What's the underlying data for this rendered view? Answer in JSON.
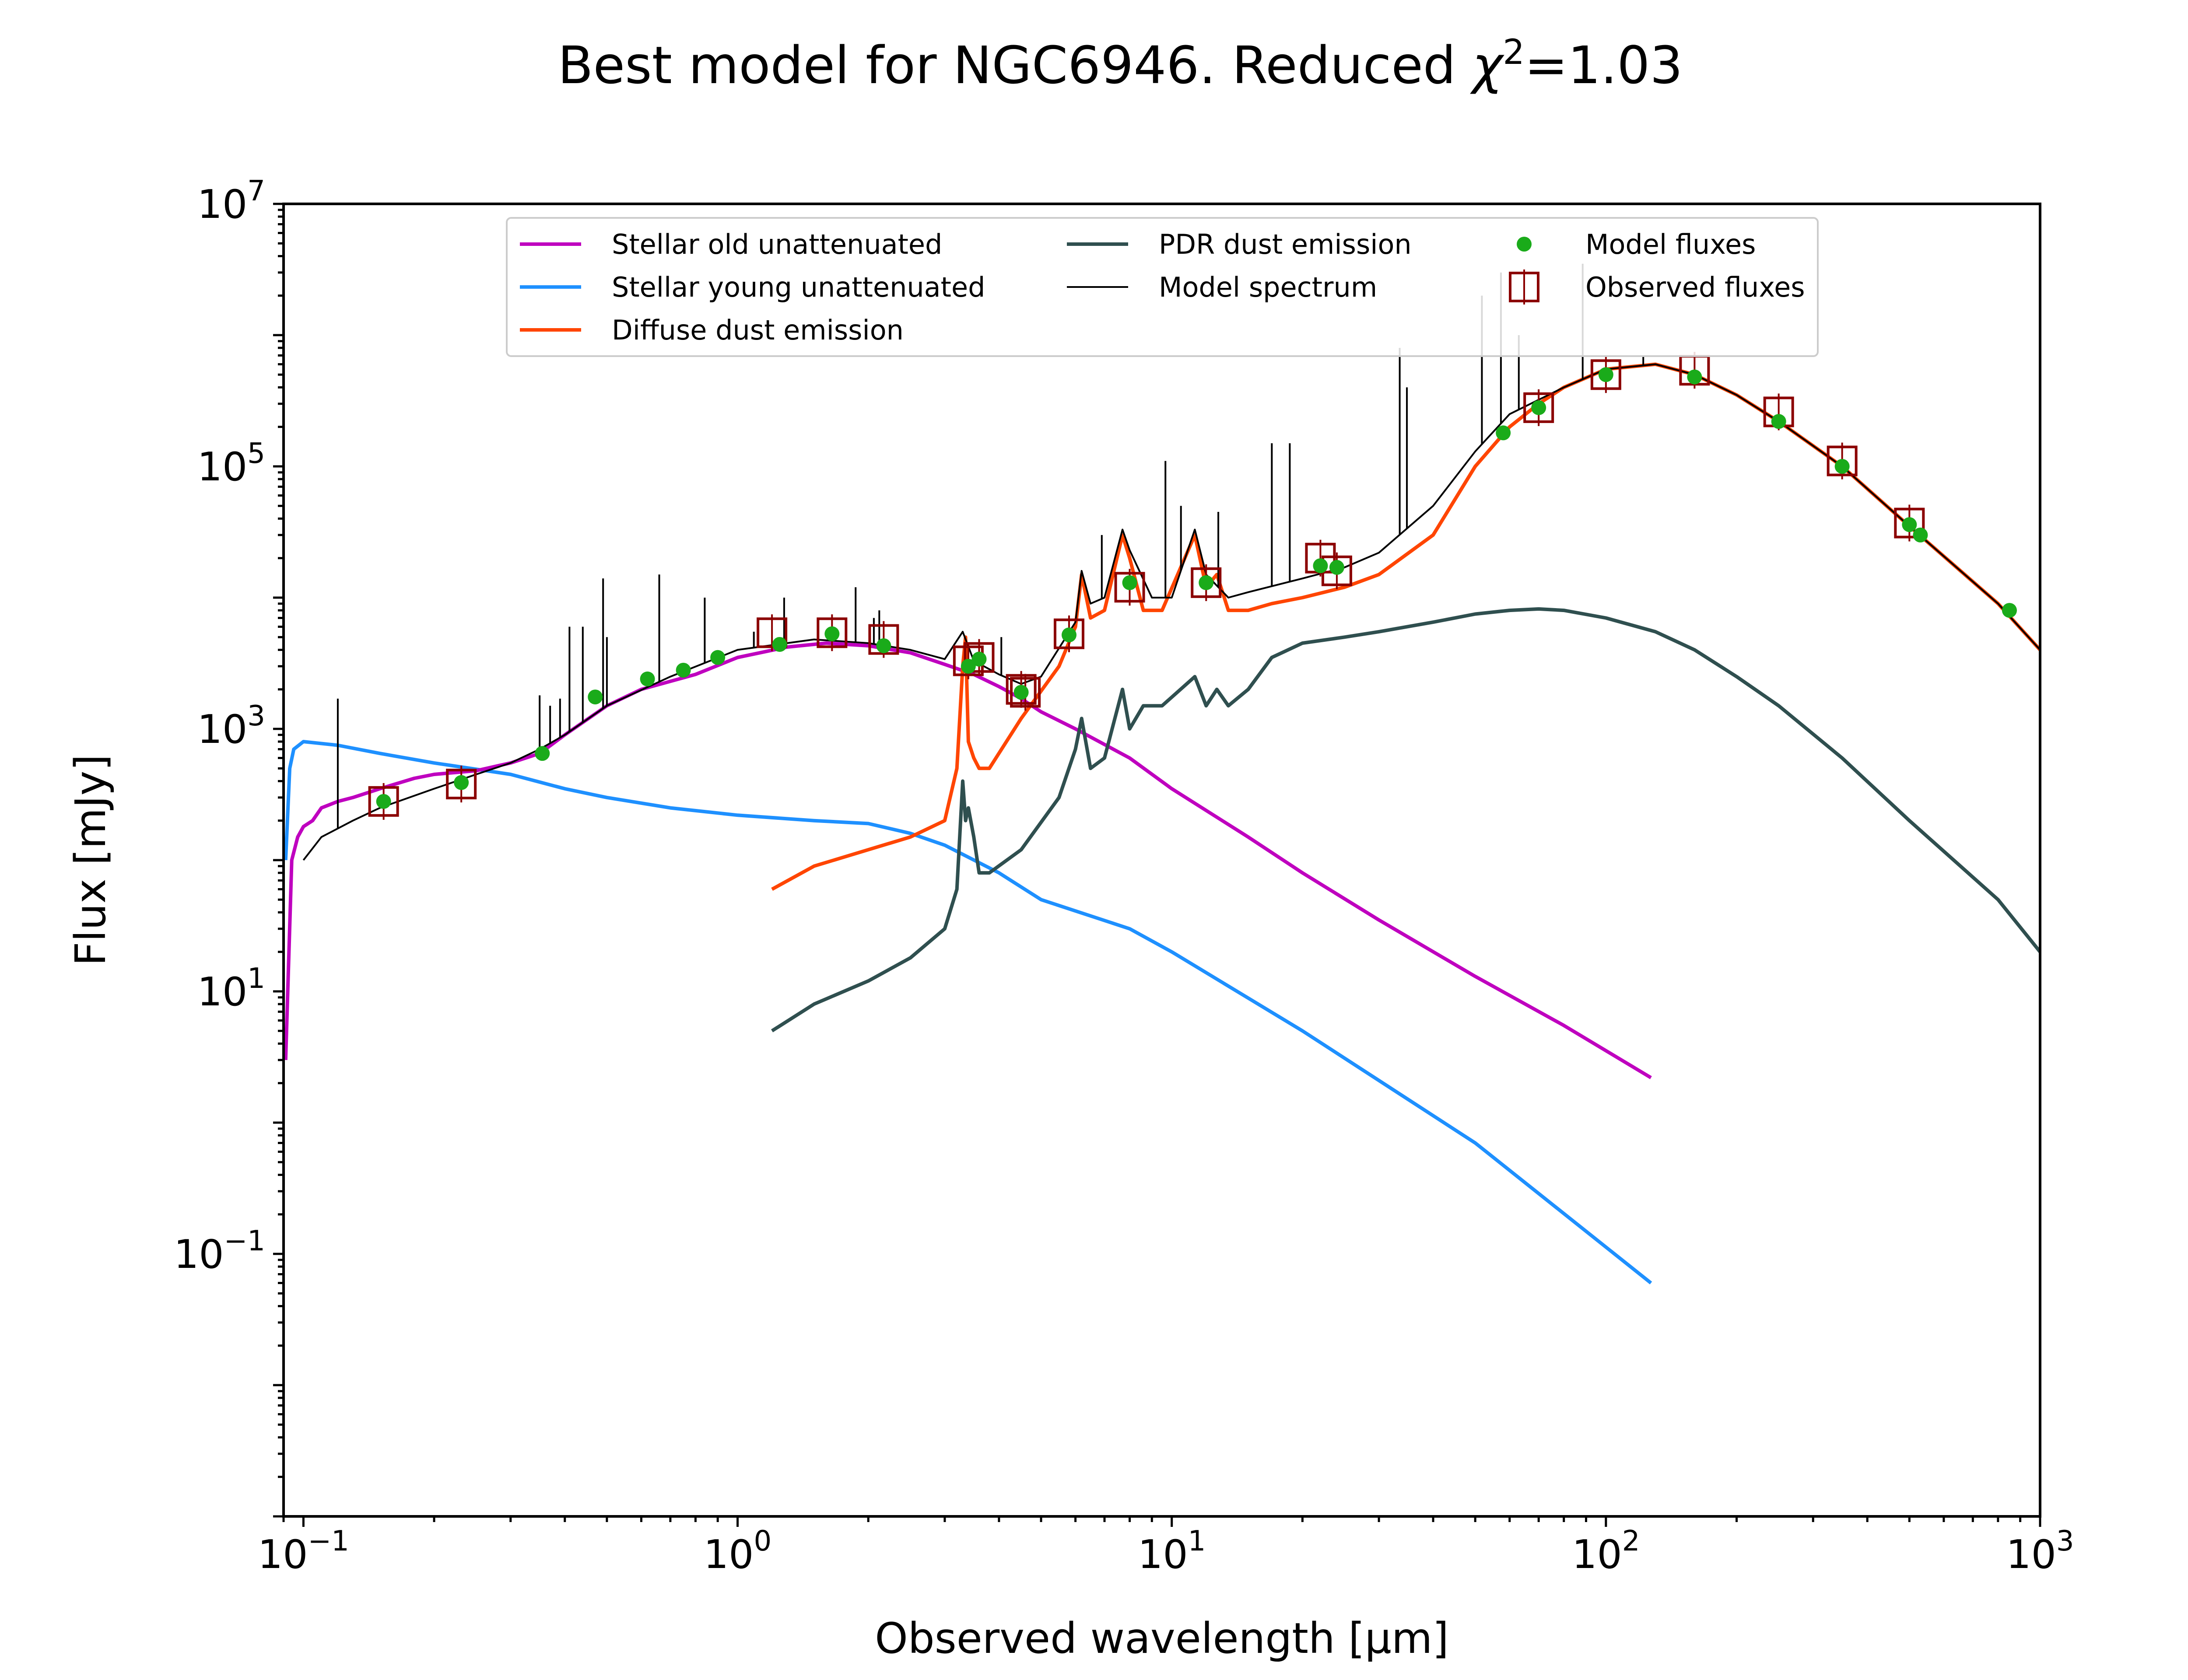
{
  "chart_data": {
    "type": "line",
    "title": "Best model for NGC6946. Reduced χ²=1.03",
    "title_main": "Best model for NGC6946. Reduced ",
    "title_chi": "χ",
    "title_sup": "2",
    "title_tail": "=1.03",
    "xlabel": "Observed wavelength [μm]",
    "ylabel": "Flux [mJy]",
    "xscale": "log",
    "yscale": "log",
    "xlim": [
      0.09,
      1000
    ],
    "ylim": [
      0.001,
      10000000
    ],
    "grid": false,
    "legend_position": "top",
    "x_ticks": [
      {
        "value": 0.1,
        "base": "10",
        "exp": "−1"
      },
      {
        "value": 1,
        "base": "10",
        "exp": "0"
      },
      {
        "value": 10,
        "base": "10",
        "exp": "1"
      },
      {
        "value": 100,
        "base": "10",
        "exp": "2"
      },
      {
        "value": 1000,
        "base": "10",
        "exp": "3"
      }
    ],
    "y_ticks": [
      {
        "value": 0.1,
        "base": "10",
        "exp": "−1"
      },
      {
        "value": 10,
        "base": "10",
        "exp": "1"
      },
      {
        "value": 1000,
        "base": "10",
        "exp": "3"
      },
      {
        "value": 100000,
        "base": "10",
        "exp": "5"
      },
      {
        "value": 10000000,
        "base": "10",
        "exp": "7"
      }
    ],
    "series": [
      {
        "name": "Stellar old unattenuated",
        "color": "#bf00bf",
        "x": [
          0.091,
          0.094,
          0.097,
          0.1,
          0.105,
          0.11,
          0.12,
          0.13,
          0.15,
          0.18,
          0.2,
          0.25,
          0.3,
          0.35,
          0.4,
          0.5,
          0.6,
          0.8,
          1.0,
          1.3,
          1.6,
          2.0,
          2.5,
          3.0,
          3.5,
          4.0,
          4.5,
          5.0,
          6.0,
          8.0,
          10,
          15,
          20,
          30,
          50,
          80,
          127
        ],
        "y": [
          3,
          100,
          150,
          180,
          200,
          250,
          280,
          300,
          350,
          420,
          450,
          480,
          550,
          650,
          900,
          1500,
          2000,
          2600,
          3500,
          4200,
          4500,
          4300,
          3800,
          3100,
          2600,
          2100,
          1700,
          1350,
          1000,
          600,
          350,
          150,
          80,
          35,
          13,
          5.5,
          2.2
        ]
      },
      {
        "name": "Stellar young unattenuated",
        "color": "#1e90ff",
        "x": [
          0.091,
          0.093,
          0.095,
          0.1,
          0.12,
          0.15,
          0.2,
          0.3,
          0.4,
          0.5,
          0.7,
          1.0,
          1.5,
          2.0,
          2.5,
          3.0,
          4.0,
          5.0,
          8.0,
          10,
          20,
          50,
          127
        ],
        "y": [
          100,
          500,
          700,
          800,
          750,
          650,
          550,
          450,
          350,
          300,
          250,
          220,
          200,
          190,
          160,
          130,
          80,
          50,
          30,
          20,
          5,
          0.7,
          0.06
        ]
      },
      {
        "name": "Diffuse dust emission",
        "color": "#ff4500",
        "x": [
          1.2,
          1.5,
          2.0,
          2.5,
          3.0,
          3.2,
          3.3,
          3.35,
          3.4,
          3.5,
          3.6,
          3.8,
          4.5,
          5.5,
          6.0,
          6.2,
          6.5,
          7.0,
          7.7,
          8.0,
          8.6,
          9.5,
          11.3,
          12.0,
          12.7,
          13.5,
          15,
          17,
          20,
          25,
          30,
          40,
          50,
          60,
          70,
          80,
          100,
          130,
          160,
          200,
          250,
          350,
          500,
          800,
          1000
        ],
        "y": [
          60,
          90,
          120,
          150,
          200,
          500,
          3000,
          5000,
          800,
          600,
          500,
          500,
          1200,
          3000,
          6000,
          15000,
          7000,
          8000,
          30000,
          20000,
          8000,
          8000,
          30000,
          12000,
          15000,
          8000,
          8000,
          9000,
          10000,
          12000,
          15000,
          30000,
          100000,
          200000,
          300000,
          400000,
          550000,
          600000,
          500000,
          350000,
          220000,
          100000,
          35000,
          9000,
          4000
        ]
      },
      {
        "name": "PDR dust emission",
        "color": "#2f4f4f",
        "x": [
          1.2,
          1.5,
          2.0,
          2.5,
          3.0,
          3.2,
          3.3,
          3.35,
          3.4,
          3.5,
          3.6,
          3.8,
          4.5,
          5.5,
          6.0,
          6.2,
          6.5,
          7.0,
          7.7,
          8.0,
          8.6,
          9.5,
          11.3,
          12.0,
          12.7,
          13.5,
          15,
          17,
          20,
          25,
          30,
          40,
          50,
          60,
          70,
          80,
          100,
          130,
          160,
          200,
          250,
          350,
          500,
          800,
          1000
        ],
        "y": [
          5,
          8,
          12,
          18,
          30,
          60,
          400,
          200,
          250,
          150,
          80,
          80,
          120,
          300,
          700,
          1200,
          500,
          600,
          2000,
          1000,
          1500,
          1500,
          2500,
          1500,
          2000,
          1500,
          2000,
          3500,
          4500,
          5000,
          5500,
          6500,
          7500,
          8000,
          8200,
          8000,
          7000,
          5500,
          4000,
          2500,
          1500,
          600,
          200,
          50,
          20
        ]
      },
      {
        "name": "Model spectrum",
        "color": "#000000",
        "x": [
          0.1,
          0.11,
          0.13,
          0.15,
          0.2,
          0.25,
          0.3,
          0.35,
          0.4,
          0.5,
          0.7,
          1.0,
          1.5,
          2.0,
          2.5,
          3.0,
          3.3,
          3.5,
          4.0,
          4.5,
          5.0,
          6.0,
          6.2,
          6.5,
          7.0,
          7.7,
          8.0,
          9.0,
          10,
          11.3,
          12.0,
          13.5,
          15,
          20,
          25,
          30,
          40,
          50,
          60,
          80,
          100,
          130,
          160,
          200,
          250,
          350,
          500,
          800,
          1000
        ],
        "y": [
          100,
          150,
          200,
          250,
          350,
          450,
          550,
          700,
          900,
          1500,
          2500,
          4000,
          4800,
          4500,
          4000,
          3400,
          5500,
          3300,
          2600,
          2200,
          2500,
          6500,
          16000,
          9000,
          10000,
          33000,
          23000,
          10000,
          10000,
          33000,
          15000,
          10000,
          11000,
          14000,
          17000,
          22000,
          50000,
          130000,
          250000,
          400000,
          550000,
          600000,
          500000,
          350000,
          220000,
          100000,
          35000,
          9000,
          4000
        ]
      }
    ],
    "model_spectrum_lines": [
      {
        "x": 0.12,
        "top": 1700
      },
      {
        "x": 0.35,
        "top": 1800
      },
      {
        "x": 0.37,
        "top": 1500
      },
      {
        "x": 0.39,
        "top": 1700
      },
      {
        "x": 0.41,
        "top": 6000
      },
      {
        "x": 0.44,
        "top": 6000
      },
      {
        "x": 0.49,
        "top": 14000
      },
      {
        "x": 0.5,
        "top": 5000
      },
      {
        "x": 0.66,
        "top": 15000
      },
      {
        "x": 0.84,
        "top": 10000
      },
      {
        "x": 1.09,
        "top": 5500
      },
      {
        "x": 1.28,
        "top": 10000
      },
      {
        "x": 1.87,
        "top": 12000
      },
      {
        "x": 2.06,
        "top": 7000
      },
      {
        "x": 2.12,
        "top": 8000
      },
      {
        "x": 4.05,
        "top": 5000
      },
      {
        "x": 6.9,
        "top": 30000
      },
      {
        "x": 9.67,
        "top": 110000
      },
      {
        "x": 10.5,
        "top": 50000
      },
      {
        "x": 12.8,
        "top": 45000
      },
      {
        "x": 17.0,
        "top": 150000
      },
      {
        "x": 18.7,
        "top": 150000
      },
      {
        "x": 33.5,
        "top": 800000
      },
      {
        "x": 34.8,
        "top": 400000
      },
      {
        "x": 51.8,
        "top": 2000000
      },
      {
        "x": 57.3,
        "top": 3000000
      },
      {
        "x": 63.0,
        "top": 1000000
      },
      {
        "x": 88.4,
        "top": 3500000
      },
      {
        "x": 121.9,
        "top": 700000
      }
    ],
    "model_fluxes": {
      "name": "Model fluxes",
      "color": "#1aab1a",
      "x": [
        0.153,
        0.231,
        0.355,
        0.47,
        0.62,
        0.75,
        0.9,
        1.25,
        1.65,
        2.17,
        3.4,
        3.6,
        4.5,
        5.8,
        8.0,
        12,
        22,
        24,
        58,
        70,
        100,
        160,
        250,
        350,
        500,
        530,
        850
      ],
      "y": [
        280,
        390,
        650,
        1750,
        2400,
        2800,
        3500,
        4400,
        5300,
        4300,
        3000,
        3400,
        1900,
        5200,
        13000,
        13000,
        17500,
        17000,
        180000,
        280000,
        500000,
        480000,
        220000,
        100000,
        36000,
        30000,
        8000
      ]
    },
    "observed_fluxes": {
      "name": "Observed fluxes",
      "color": "#8b0000",
      "x": [
        0.153,
        0.231,
        1.2,
        1.65,
        2.17,
        3.4,
        3.6,
        4.5,
        4.6,
        5.8,
        8.0,
        12,
        22,
        24,
        70,
        100,
        160,
        250,
        350,
        500
      ],
      "y": [
        280,
        380,
        5400,
        5400,
        4800,
        3300,
        3500,
        2000,
        1900,
        5300,
        12000,
        13000,
        20000,
        16000,
        280000,
        500000,
        540000,
        260000,
        110000,
        37000
      ]
    }
  }
}
